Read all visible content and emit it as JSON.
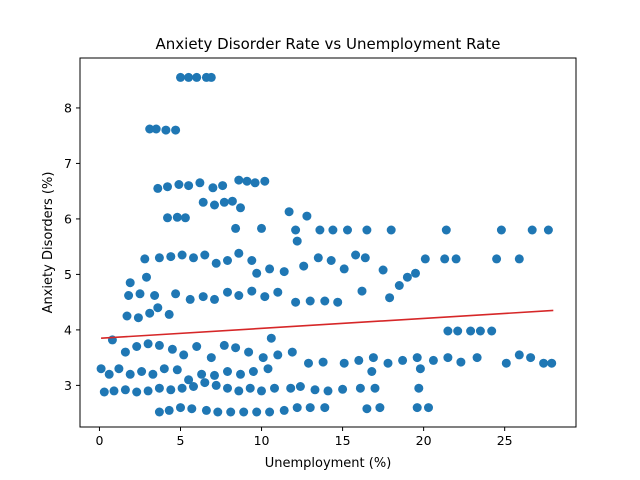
{
  "chart_data": {
    "type": "scatter",
    "title": "Anxiety Disorder Rate vs Unemployment Rate",
    "xlabel": "Unemployment (%)",
    "ylabel": "Anxiety Disorders (%)",
    "xlim": [
      -1.2,
      29.4
    ],
    "ylim": [
      2.25,
      8.9
    ],
    "xticks": [
      0,
      5,
      10,
      15,
      20,
      25
    ],
    "yticks": [
      3,
      4,
      5,
      6,
      7,
      8
    ],
    "grid": false,
    "legend": "none",
    "colors": {
      "points": "#1f77b4",
      "trend": "#d62728"
    },
    "trendline": {
      "x": [
        0.1,
        28.0
      ],
      "y": [
        3.85,
        4.35
      ]
    },
    "points": [
      [
        5.0,
        8.55
      ],
      [
        5.5,
        8.55
      ],
      [
        6.0,
        8.55
      ],
      [
        6.6,
        8.55
      ],
      [
        6.9,
        8.55
      ],
      [
        3.1,
        7.62
      ],
      [
        3.5,
        7.62
      ],
      [
        4.1,
        7.6
      ],
      [
        4.7,
        7.6
      ],
      [
        3.6,
        6.55
      ],
      [
        4.2,
        6.58
      ],
      [
        4.9,
        6.62
      ],
      [
        5.5,
        6.6
      ],
      [
        6.2,
        6.65
      ],
      [
        7.0,
        6.56
      ],
      [
        7.6,
        6.6
      ],
      [
        8.6,
        6.7
      ],
      [
        9.1,
        6.68
      ],
      [
        9.6,
        6.65
      ],
      [
        10.2,
        6.68
      ],
      [
        4.2,
        6.02
      ],
      [
        4.8,
        6.03
      ],
      [
        5.3,
        6.02
      ],
      [
        6.4,
        6.3
      ],
      [
        7.1,
        6.25
      ],
      [
        7.7,
        6.3
      ],
      [
        8.2,
        6.32
      ],
      [
        8.7,
        6.2
      ],
      [
        11.7,
        6.13
      ],
      [
        12.8,
        6.05
      ],
      [
        8.4,
        5.83
      ],
      [
        10.0,
        5.83
      ],
      [
        12.1,
        5.8
      ],
      [
        2.8,
        5.28
      ],
      [
        3.7,
        5.3
      ],
      [
        4.4,
        5.32
      ],
      [
        5.1,
        5.35
      ],
      [
        5.8,
        5.3
      ],
      [
        6.5,
        5.35
      ],
      [
        7.2,
        5.2
      ],
      [
        7.9,
        5.25
      ],
      [
        8.6,
        5.38
      ],
      [
        9.4,
        5.25
      ],
      [
        12.2,
        5.6
      ],
      [
        13.6,
        5.8
      ],
      [
        14.4,
        5.8
      ],
      [
        15.3,
        5.8
      ],
      [
        16.5,
        5.8
      ],
      [
        18.0,
        5.8
      ],
      [
        21.4,
        5.8
      ],
      [
        24.8,
        5.8
      ],
      [
        26.7,
        5.8
      ],
      [
        27.7,
        5.8
      ],
      [
        1.9,
        4.85
      ],
      [
        2.9,
        4.95
      ],
      [
        9.7,
        5.02
      ],
      [
        10.5,
        5.1
      ],
      [
        11.4,
        5.05
      ],
      [
        12.6,
        5.15
      ],
      [
        13.5,
        5.3
      ],
      [
        14.3,
        5.25
      ],
      [
        15.1,
        5.1
      ],
      [
        15.8,
        5.35
      ],
      [
        16.4,
        5.3
      ],
      [
        17.5,
        5.08
      ],
      [
        19.5,
        5.02
      ],
      [
        20.1,
        5.28
      ],
      [
        21.3,
        5.28
      ],
      [
        22.0,
        5.28
      ],
      [
        24.5,
        5.28
      ],
      [
        25.9,
        5.28
      ],
      [
        1.8,
        4.62
      ],
      [
        2.5,
        4.65
      ],
      [
        3.4,
        4.62
      ],
      [
        4.7,
        4.65
      ],
      [
        5.6,
        4.55
      ],
      [
        6.4,
        4.6
      ],
      [
        7.1,
        4.55
      ],
      [
        7.9,
        4.68
      ],
      [
        8.6,
        4.62
      ],
      [
        9.4,
        4.7
      ],
      [
        10.2,
        4.6
      ],
      [
        11.0,
        4.68
      ],
      [
        12.1,
        4.5
      ],
      [
        13.0,
        4.52
      ],
      [
        13.9,
        4.52
      ],
      [
        14.7,
        4.5
      ],
      [
        16.2,
        4.7
      ],
      [
        17.9,
        4.58
      ],
      [
        18.5,
        4.8
      ],
      [
        19.0,
        4.95
      ],
      [
        1.7,
        4.25
      ],
      [
        2.4,
        4.22
      ],
      [
        3.1,
        4.3
      ],
      [
        3.6,
        4.4
      ],
      [
        4.3,
        4.28
      ],
      [
        21.5,
        3.98
      ],
      [
        22.1,
        3.98
      ],
      [
        22.9,
        3.98
      ],
      [
        23.5,
        3.98
      ],
      [
        24.2,
        3.98
      ],
      [
        10.6,
        3.85
      ],
      [
        0.8,
        3.82
      ],
      [
        1.6,
        3.6
      ],
      [
        2.3,
        3.7
      ],
      [
        3.0,
        3.75
      ],
      [
        3.7,
        3.72
      ],
      [
        4.5,
        3.65
      ],
      [
        5.2,
        3.55
      ],
      [
        6.0,
        3.7
      ],
      [
        6.9,
        3.5
      ],
      [
        7.7,
        3.72
      ],
      [
        8.4,
        3.68
      ],
      [
        9.2,
        3.6
      ],
      [
        10.1,
        3.5
      ],
      [
        11.0,
        3.55
      ],
      [
        11.9,
        3.6
      ],
      [
        12.9,
        3.4
      ],
      [
        13.8,
        3.42
      ],
      [
        15.1,
        3.4
      ],
      [
        16.0,
        3.45
      ],
      [
        16.9,
        3.5
      ],
      [
        17.8,
        3.4
      ],
      [
        18.7,
        3.45
      ],
      [
        19.6,
        3.5
      ],
      [
        20.6,
        3.45
      ],
      [
        21.5,
        3.5
      ],
      [
        22.3,
        3.42
      ],
      [
        23.3,
        3.5
      ],
      [
        25.1,
        3.4
      ],
      [
        25.9,
        3.55
      ],
      [
        26.6,
        3.5
      ],
      [
        27.4,
        3.4
      ],
      [
        27.9,
        3.4
      ],
      [
        0.1,
        3.3
      ],
      [
        0.6,
        3.2
      ],
      [
        1.2,
        3.3
      ],
      [
        1.9,
        3.2
      ],
      [
        2.6,
        3.25
      ],
      [
        3.3,
        3.2
      ],
      [
        4.0,
        3.3
      ],
      [
        4.8,
        3.28
      ],
      [
        5.5,
        3.1
      ],
      [
        6.3,
        3.2
      ],
      [
        7.1,
        3.18
      ],
      [
        7.9,
        3.25
      ],
      [
        8.7,
        3.2
      ],
      [
        9.5,
        3.25
      ],
      [
        10.4,
        3.3
      ],
      [
        16.8,
        3.25
      ],
      [
        19.8,
        3.3
      ],
      [
        0.3,
        2.88
      ],
      [
        0.9,
        2.9
      ],
      [
        1.6,
        2.92
      ],
      [
        2.3,
        2.88
      ],
      [
        3.0,
        2.9
      ],
      [
        3.7,
        2.95
      ],
      [
        4.4,
        2.92
      ],
      [
        5.1,
        2.95
      ],
      [
        5.8,
        2.98
      ],
      [
        6.5,
        3.05
      ],
      [
        7.2,
        3.0
      ],
      [
        7.9,
        2.95
      ],
      [
        8.6,
        2.9
      ],
      [
        9.3,
        2.95
      ],
      [
        10.0,
        2.9
      ],
      [
        10.8,
        2.95
      ],
      [
        11.8,
        2.95
      ],
      [
        12.4,
        2.98
      ],
      [
        13.3,
        2.92
      ],
      [
        14.1,
        2.9
      ],
      [
        15.0,
        2.93
      ],
      [
        16.1,
        2.95
      ],
      [
        17.0,
        2.95
      ],
      [
        19.7,
        2.95
      ],
      [
        3.7,
        2.52
      ],
      [
        4.3,
        2.55
      ],
      [
        5.0,
        2.6
      ],
      [
        5.7,
        2.58
      ],
      [
        6.6,
        2.55
      ],
      [
        7.3,
        2.52
      ],
      [
        8.1,
        2.52
      ],
      [
        8.9,
        2.52
      ],
      [
        9.7,
        2.52
      ],
      [
        10.5,
        2.52
      ],
      [
        11.4,
        2.55
      ],
      [
        12.2,
        2.6
      ],
      [
        13.0,
        2.6
      ],
      [
        13.9,
        2.6
      ],
      [
        16.5,
        2.58
      ],
      [
        17.3,
        2.6
      ],
      [
        19.6,
        2.6
      ],
      [
        20.3,
        2.6
      ]
    ]
  }
}
